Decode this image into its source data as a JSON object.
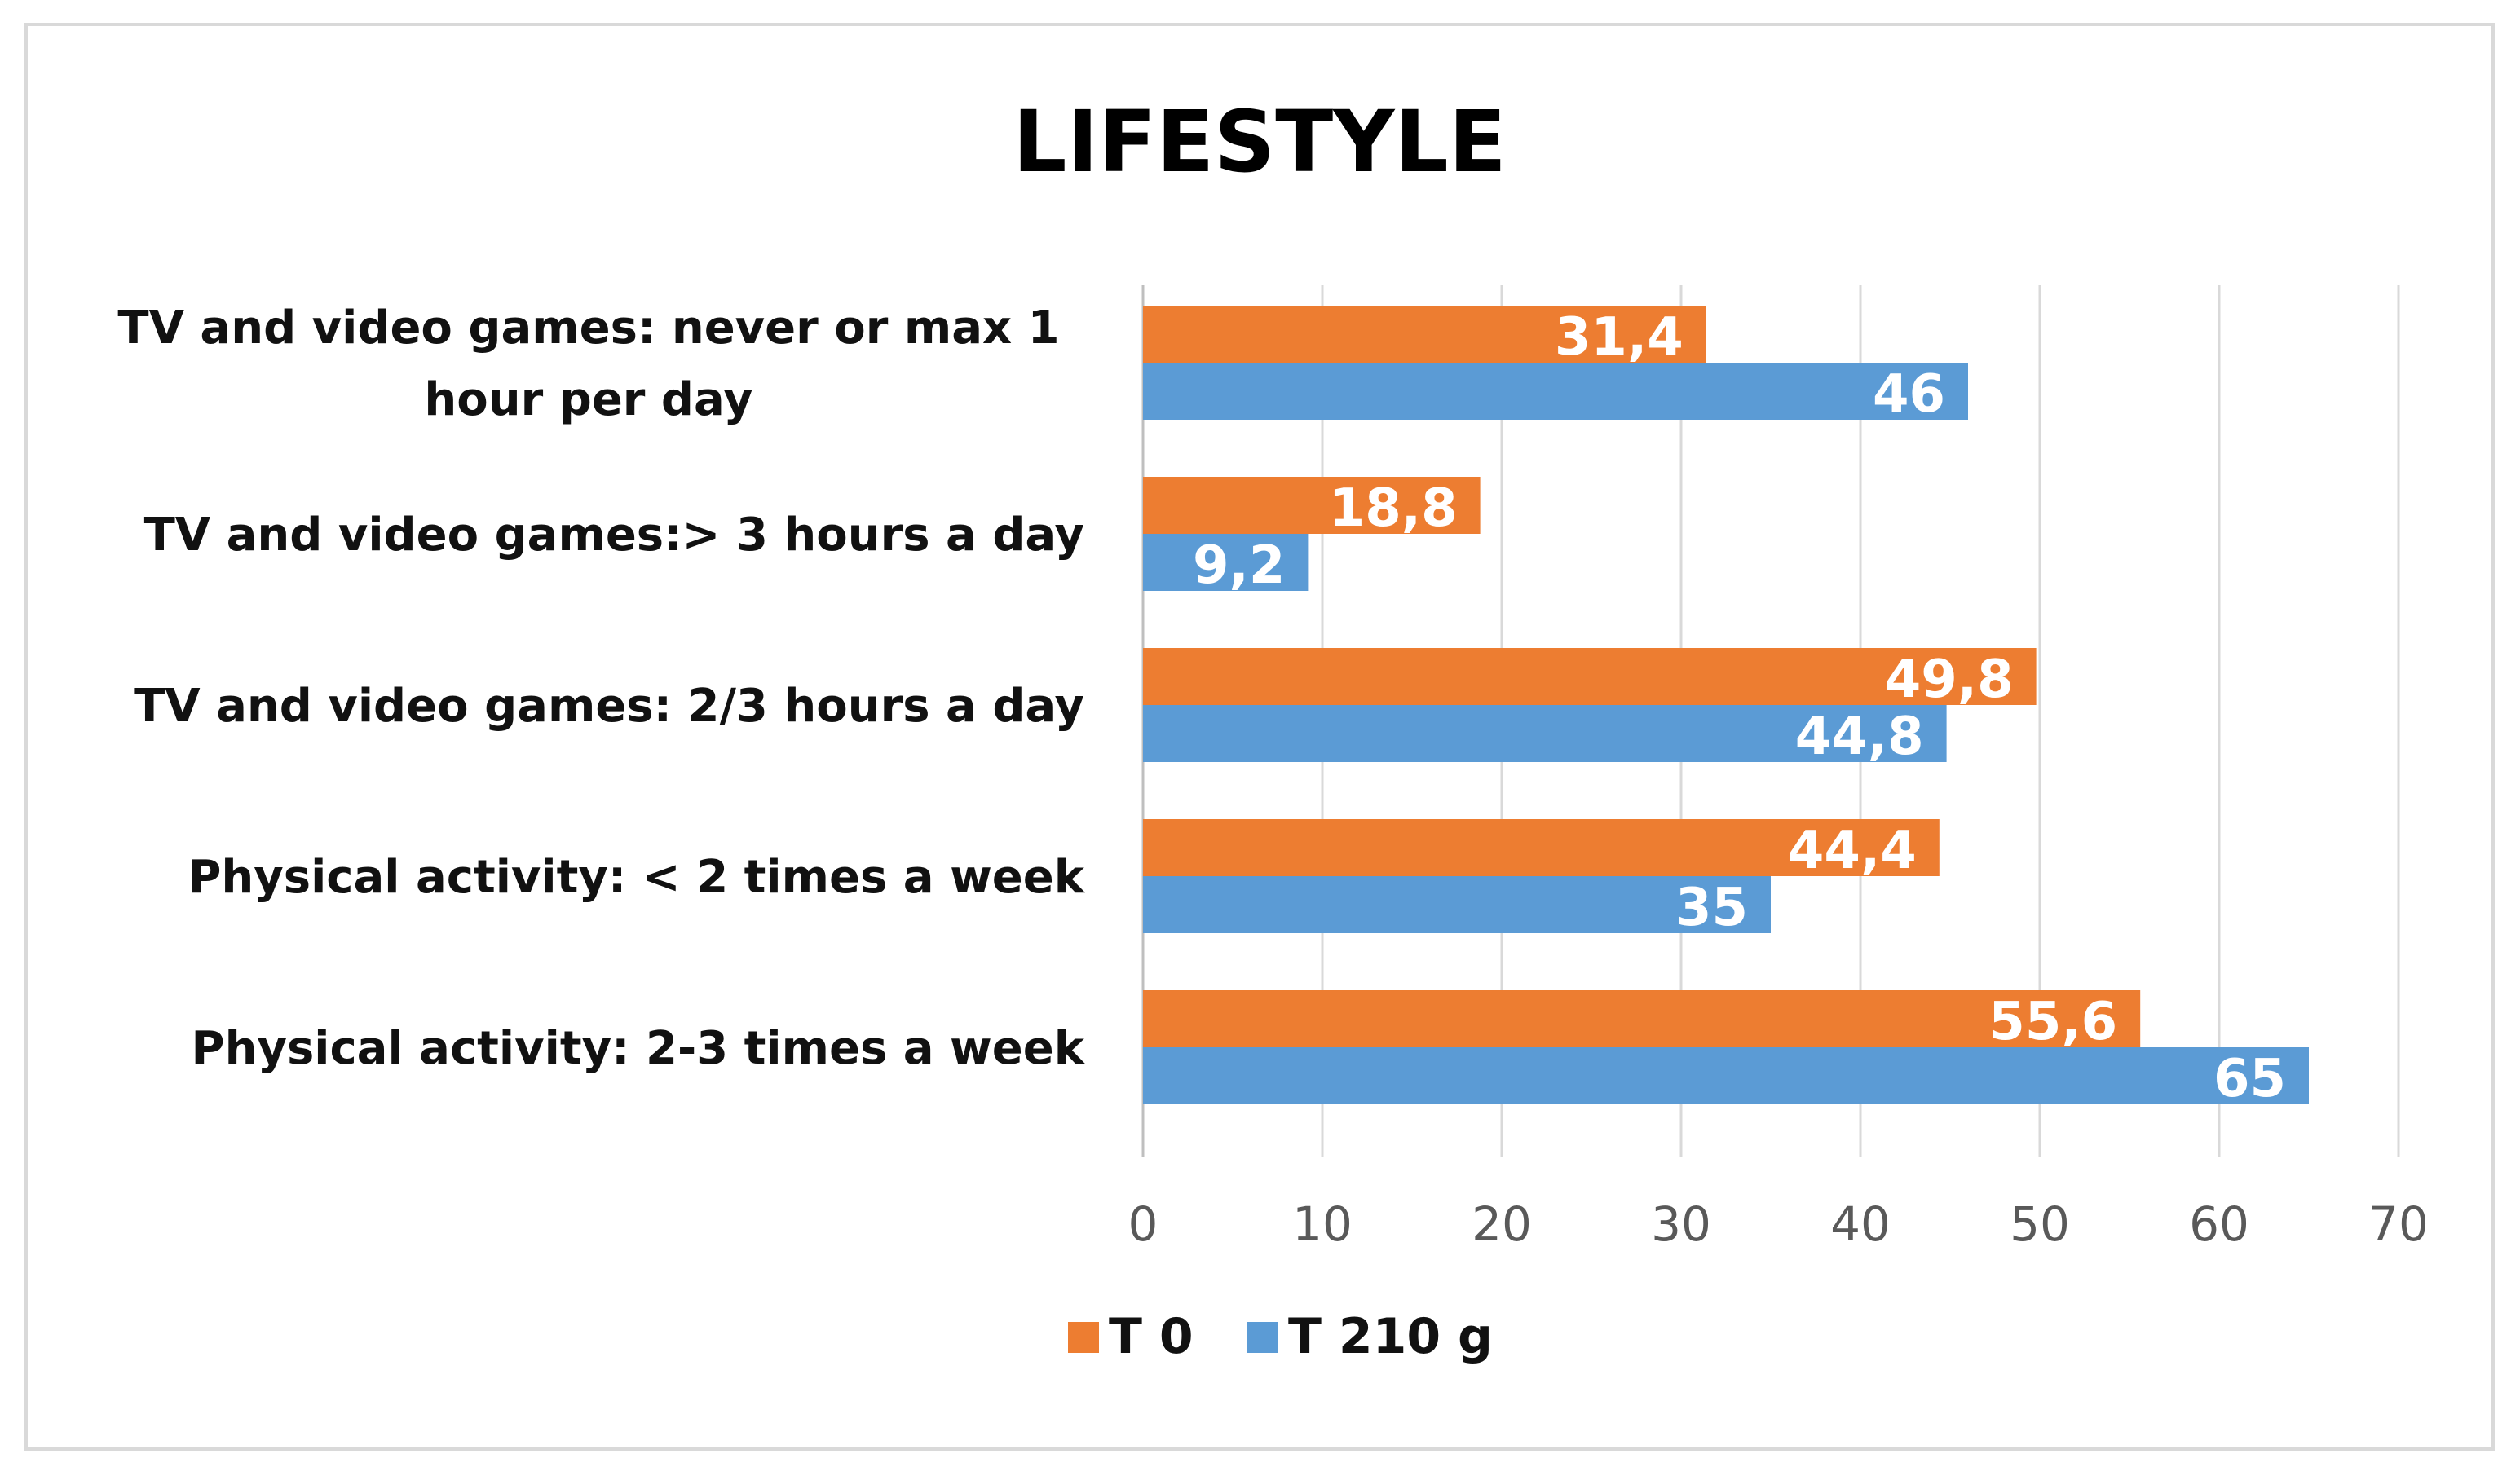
{
  "chart_data": {
    "type": "bar",
    "orientation": "horizontal",
    "title": "LIFESTYLE",
    "categories": [
      [
        "TV and video games: never or max 1",
        "hour per day"
      ],
      [
        "TV and video games:> 3 hours a day"
      ],
      [
        "TV and video games: 2/3 hours a day"
      ],
      [
        "Physical activity: < 2 times a week"
      ],
      [
        "Physical activity: 2-3 times a week"
      ]
    ],
    "series": [
      {
        "name": "T 0",
        "color": "#ED7D31",
        "values": [
          31.4,
          18.8,
          49.8,
          44.4,
          55.6
        ],
        "labels": [
          "31,4",
          "18,8",
          "49,8",
          "44,4",
          "55,6"
        ]
      },
      {
        "name": "T 210 g",
        "color": "#5B9BD5",
        "values": [
          46,
          9.2,
          44.8,
          35,
          65
        ],
        "labels": [
          "46",
          "9,2",
          "44,8",
          "35",
          "65"
        ]
      }
    ],
    "xlim": [
      0,
      70
    ],
    "xticks": [
      "0",
      "10",
      "20",
      "30",
      "40",
      "50",
      "60",
      "70"
    ],
    "grid": true,
    "legend": "bottom"
  }
}
